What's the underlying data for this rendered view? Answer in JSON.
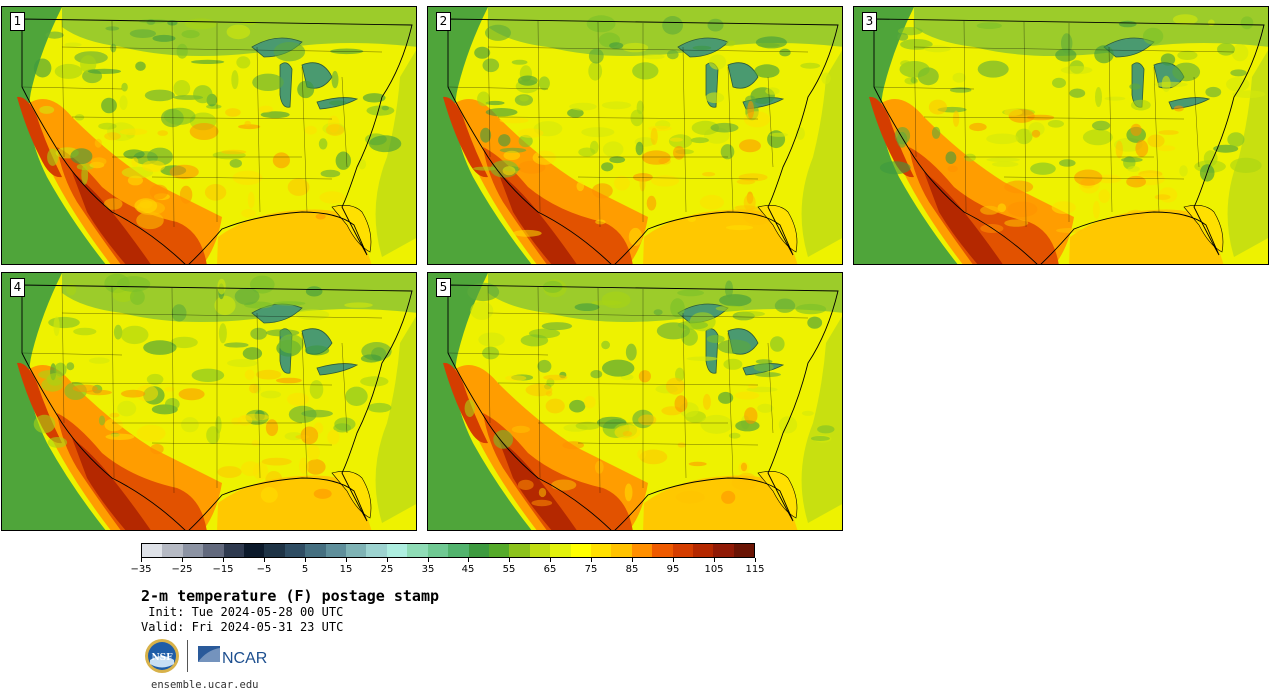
{
  "panels": [
    {
      "label": "1"
    },
    {
      "label": "2"
    },
    {
      "label": "3"
    },
    {
      "label": "4"
    },
    {
      "label": "5"
    }
  ],
  "colorbar": {
    "colors": [
      "#dfe2e8",
      "#b6bac4",
      "#8c93a3",
      "#62697d",
      "#2f3a4f",
      "#0c1a2b",
      "#1f3446",
      "#2f4d63",
      "#456f80",
      "#5f8f9b",
      "#7fb3b5",
      "#9dd3d0",
      "#aeeee0",
      "#8fdcb6",
      "#70c993",
      "#52b36d",
      "#3d9a3f",
      "#55aa2a",
      "#8cc21c",
      "#c0dd12",
      "#e2f20c",
      "#ffff00",
      "#ffe000",
      "#ffc200",
      "#ff8f00",
      "#ee5a00",
      "#d43d00",
      "#b42800",
      "#901a06",
      "#6a1404"
    ],
    "tick_labels": [
      "−35",
      "−25",
      "−15",
      "−5",
      "5",
      "15",
      "25",
      "35",
      "45",
      "55",
      "65",
      "75",
      "85",
      "95",
      "105",
      "115"
    ]
  },
  "title": "2-m temperature (F) postage stamp",
  "init": " Init: Tue 2024-05-28 00 UTC",
  "valid": "Valid: Fri 2024-05-31 23 UTC",
  "logos": {
    "nsf": "NSF",
    "ncar": "NCAR"
  },
  "url": "ensemble.ucar.edu"
}
